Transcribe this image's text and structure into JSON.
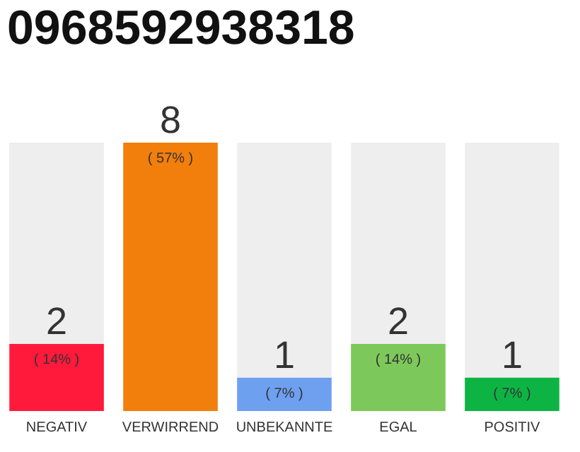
{
  "chart_data": {
    "type": "bar",
    "title": "0968592938318",
    "categories": [
      "NEGATIV",
      "VERWIRREND",
      "UNBEKANNTE",
      "EGAL",
      "POSITIV"
    ],
    "stacked": true,
    "grid": false,
    "tick_labels": "x",
    "series": [
      {
        "colors": [
          "#ff1a3c",
          "#f27e0c",
          "#6ea0f0",
          "#7dc85a",
          "#0db444"
        ],
        "values": [
          2,
          8,
          1,
          2,
          1
        ],
        "value_labels": [
          "2",
          "8",
          "1",
          "2",
          "1"
        ]
      },
      {
        "color": "#eeeeee",
        "values": [
          6,
          0,
          7,
          6,
          7
        ],
        "value_labels": [
          null,
          null,
          null,
          null,
          null
        ]
      }
    ],
    "annotations": [
      {
        "text": "( 14% )",
        "x": "NEGATIV",
        "y": 2
      },
      {
        "text": "( 57% )",
        "x": "VERWIRREND",
        "y": 8
      },
      {
        "text": "( 7% )",
        "x": "UNBEKANNTE",
        "y": 1
      },
      {
        "text": "( 14% )",
        "x": "EGAL",
        "y": 2
      },
      {
        "text": "( 7% )",
        "x": "POSITIV",
        "y": 1
      }
    ]
  }
}
